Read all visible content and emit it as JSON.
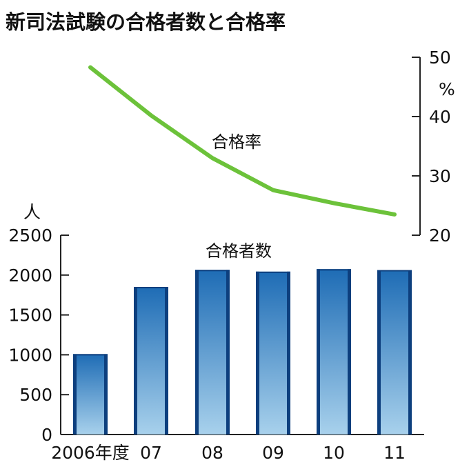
{
  "chart_data": {
    "title": "新司法試験の合格者数と合格率",
    "categories": [
      "2006年度",
      "07",
      "08",
      "09",
      "10",
      "11"
    ],
    "bar_series": {
      "type": "bar",
      "name": "合格者数",
      "unit": "人",
      "values": [
        1009,
        1851,
        2065,
        2043,
        2074,
        2063
      ],
      "ylim": [
        0,
        2500
      ],
      "ticks": [
        "0",
        "500",
        "1000",
        "1500",
        "2000",
        "2500"
      ],
      "tick_values": [
        0,
        500,
        1000,
        1500,
        2000,
        2500
      ],
      "color_top": "#1e6cb5",
      "color_bottom": "#a8d1ec",
      "edge_color": "#0d3f7e"
    },
    "line_series": {
      "type": "line",
      "name": "合格率",
      "unit": "%",
      "values": [
        48.3,
        40.2,
        33.0,
        27.6,
        25.4,
        23.5
      ],
      "ylim": [
        20,
        50
      ],
      "ticks": [
        "20",
        "30",
        "40",
        "50"
      ],
      "tick_values": [
        20,
        30,
        40,
        50
      ],
      "color": "#6cc23a"
    }
  }
}
